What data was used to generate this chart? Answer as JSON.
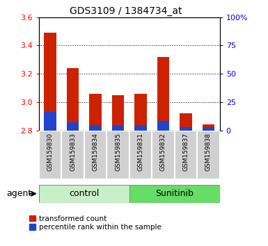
{
  "title": "GDS3109 / 1384734_at",
  "samples": [
    "GSM159830",
    "GSM159833",
    "GSM159834",
    "GSM159835",
    "GSM159831",
    "GSM159832",
    "GSM159837",
    "GSM159838"
  ],
  "red_values": [
    3.49,
    3.24,
    3.06,
    3.05,
    3.06,
    3.32,
    2.92,
    2.84
  ],
  "blue_values": [
    2.93,
    2.855,
    2.835,
    2.835,
    2.835,
    2.865,
    2.825,
    2.825
  ],
  "ylim": [
    2.8,
    3.6
  ],
  "yticks": [
    2.8,
    3.0,
    3.2,
    3.4,
    3.6
  ],
  "y2ticks": [
    0,
    25,
    50,
    75,
    100
  ],
  "y2ticklabels": [
    "0",
    "25",
    "50",
    "75",
    "100%"
  ],
  "groups": [
    {
      "label": "control",
      "indices": [
        0,
        1,
        2,
        3
      ],
      "color": "#c8f0c8"
    },
    {
      "label": "Sunitinib",
      "indices": [
        4,
        5,
        6,
        7
      ],
      "color": "#66dd66"
    }
  ],
  "agent_label": "agent",
  "bar_width": 0.55,
  "red_color": "#cc2200",
  "blue_color": "#2244cc",
  "legend_red": "transformed count",
  "legend_blue": "percentile rank within the sample",
  "label_box_color": "#d0d0d0",
  "group_border_color": "#888888"
}
